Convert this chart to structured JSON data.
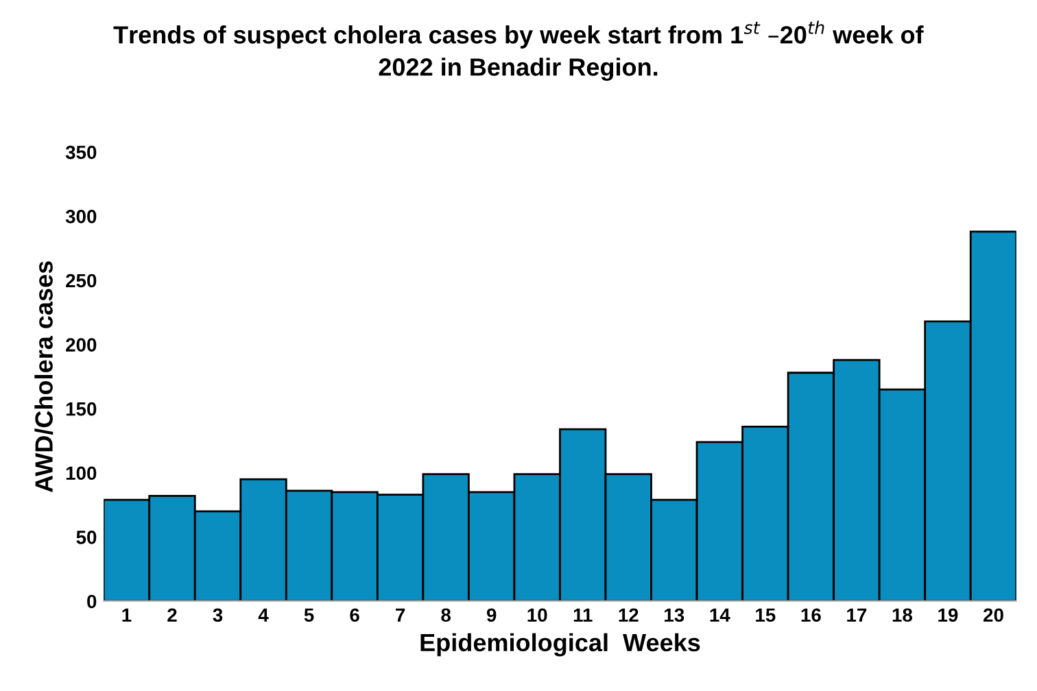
{
  "chart_data": {
    "type": "bar",
    "title": "Trends of suspect cholera cases by week start from 1$^{st}$ –20$^{th}$ week of\n2022 in Benadir Region.",
    "xlabel": "Epidemiological  Weeks",
    "ylabel": "AWD/Cholera cases",
    "categories": [
      "1",
      "2",
      "3",
      "4",
      "5",
      "6",
      "7",
      "8",
      "9",
      "10",
      "11",
      "12",
      "13",
      "14",
      "15",
      "16",
      "17",
      "18",
      "19",
      "20"
    ],
    "values": [
      79,
      82,
      70,
      95,
      86,
      85,
      83,
      99,
      85,
      99,
      134,
      99,
      79,
      124,
      136,
      178,
      188,
      165,
      218,
      288
    ],
    "color": "#0a8ebf",
    "ylim": [
      0,
      350
    ],
    "yticks": [
      0,
      50,
      100,
      150,
      200,
      250,
      300,
      350
    ],
    "grid": false,
    "legend": false
  }
}
